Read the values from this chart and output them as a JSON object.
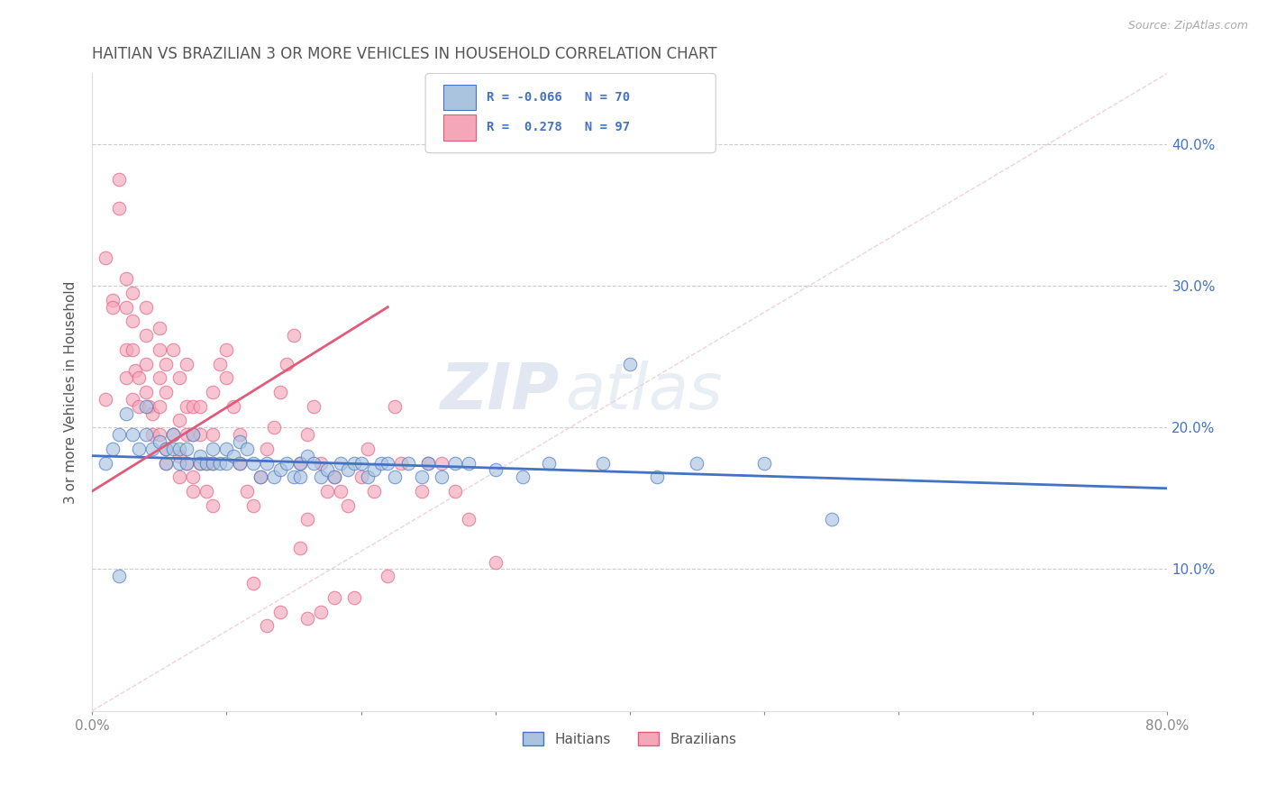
{
  "title": "HAITIAN VS BRAZILIAN 3 OR MORE VEHICLES IN HOUSEHOLD CORRELATION CHART",
  "source": "Source: ZipAtlas.com",
  "ylabel": "3 or more Vehicles in Household",
  "watermark_zip": "ZIP",
  "watermark_atlas": "atlas",
  "xmin": 0.0,
  "xmax": 0.8,
  "ymin": 0.0,
  "ymax": 0.45,
  "yticks": [
    0.1,
    0.2,
    0.3,
    0.4
  ],
  "ytick_labels": [
    "10.0%",
    "20.0%",
    "30.0%",
    "40.0%"
  ],
  "xticks": [
    0.0,
    0.1,
    0.2,
    0.3,
    0.4,
    0.5,
    0.6,
    0.7,
    0.8
  ],
  "xtick_labels": [
    "0.0%",
    "",
    "",
    "",
    "",
    "",
    "",
    "",
    "80.0%"
  ],
  "haitian_color": "#aac4e0",
  "brazilian_color": "#f4a7b9",
  "haitian_line_color": "#4472c4",
  "brazilian_line_color": "#e05a7a",
  "diagonal_color": "#cccccc",
  "background_color": "#ffffff",
  "title_color": "#555555",
  "haitian_trend": [
    0.0,
    0.8,
    0.18,
    0.157
  ],
  "brazilian_trend": [
    0.0,
    0.22,
    0.155,
    0.285
  ],
  "haitian_points": [
    [
      0.02,
      0.095
    ],
    [
      0.01,
      0.175
    ],
    [
      0.015,
      0.185
    ],
    [
      0.02,
      0.195
    ],
    [
      0.025,
      0.21
    ],
    [
      0.03,
      0.195
    ],
    [
      0.035,
      0.185
    ],
    [
      0.04,
      0.215
    ],
    [
      0.04,
      0.195
    ],
    [
      0.045,
      0.185
    ],
    [
      0.05,
      0.19
    ],
    [
      0.055,
      0.185
    ],
    [
      0.055,
      0.175
    ],
    [
      0.06,
      0.195
    ],
    [
      0.06,
      0.185
    ],
    [
      0.065,
      0.175
    ],
    [
      0.065,
      0.185
    ],
    [
      0.07,
      0.185
    ],
    [
      0.07,
      0.175
    ],
    [
      0.075,
      0.195
    ],
    [
      0.08,
      0.18
    ],
    [
      0.08,
      0.175
    ],
    [
      0.085,
      0.175
    ],
    [
      0.09,
      0.175
    ],
    [
      0.09,
      0.185
    ],
    [
      0.095,
      0.175
    ],
    [
      0.1,
      0.185
    ],
    [
      0.1,
      0.175
    ],
    [
      0.105,
      0.18
    ],
    [
      0.11,
      0.175
    ],
    [
      0.11,
      0.19
    ],
    [
      0.115,
      0.185
    ],
    [
      0.12,
      0.175
    ],
    [
      0.125,
      0.165
    ],
    [
      0.13,
      0.175
    ],
    [
      0.135,
      0.165
    ],
    [
      0.14,
      0.17
    ],
    [
      0.145,
      0.175
    ],
    [
      0.15,
      0.165
    ],
    [
      0.155,
      0.165
    ],
    [
      0.155,
      0.175
    ],
    [
      0.16,
      0.18
    ],
    [
      0.165,
      0.175
    ],
    [
      0.17,
      0.165
    ],
    [
      0.175,
      0.17
    ],
    [
      0.18,
      0.165
    ],
    [
      0.185,
      0.175
    ],
    [
      0.19,
      0.17
    ],
    [
      0.195,
      0.175
    ],
    [
      0.2,
      0.175
    ],
    [
      0.205,
      0.165
    ],
    [
      0.21,
      0.17
    ],
    [
      0.215,
      0.175
    ],
    [
      0.22,
      0.175
    ],
    [
      0.225,
      0.165
    ],
    [
      0.235,
      0.175
    ],
    [
      0.245,
      0.165
    ],
    [
      0.25,
      0.175
    ],
    [
      0.26,
      0.165
    ],
    [
      0.27,
      0.175
    ],
    [
      0.28,
      0.175
    ],
    [
      0.3,
      0.17
    ],
    [
      0.32,
      0.165
    ],
    [
      0.34,
      0.175
    ],
    [
      0.38,
      0.175
    ],
    [
      0.4,
      0.245
    ],
    [
      0.42,
      0.165
    ],
    [
      0.45,
      0.175
    ],
    [
      0.5,
      0.175
    ],
    [
      0.55,
      0.135
    ]
  ],
  "brazilian_points": [
    [
      0.01,
      0.22
    ],
    [
      0.01,
      0.32
    ],
    [
      0.015,
      0.29
    ],
    [
      0.015,
      0.285
    ],
    [
      0.02,
      0.375
    ],
    [
      0.02,
      0.355
    ],
    [
      0.025,
      0.305
    ],
    [
      0.025,
      0.285
    ],
    [
      0.025,
      0.255
    ],
    [
      0.025,
      0.235
    ],
    [
      0.03,
      0.22
    ],
    [
      0.03,
      0.295
    ],
    [
      0.03,
      0.275
    ],
    [
      0.03,
      0.255
    ],
    [
      0.032,
      0.24
    ],
    [
      0.035,
      0.235
    ],
    [
      0.035,
      0.215
    ],
    [
      0.04,
      0.285
    ],
    [
      0.04,
      0.265
    ],
    [
      0.04,
      0.245
    ],
    [
      0.04,
      0.225
    ],
    [
      0.042,
      0.215
    ],
    [
      0.045,
      0.195
    ],
    [
      0.045,
      0.21
    ],
    [
      0.05,
      0.27
    ],
    [
      0.05,
      0.255
    ],
    [
      0.05,
      0.235
    ],
    [
      0.05,
      0.215
    ],
    [
      0.05,
      0.195
    ],
    [
      0.055,
      0.185
    ],
    [
      0.055,
      0.175
    ],
    [
      0.055,
      0.225
    ],
    [
      0.055,
      0.245
    ],
    [
      0.06,
      0.255
    ],
    [
      0.06,
      0.195
    ],
    [
      0.065,
      0.18
    ],
    [
      0.065,
      0.165
    ],
    [
      0.065,
      0.205
    ],
    [
      0.065,
      0.235
    ],
    [
      0.07,
      0.215
    ],
    [
      0.07,
      0.245
    ],
    [
      0.07,
      0.195
    ],
    [
      0.07,
      0.175
    ],
    [
      0.075,
      0.165
    ],
    [
      0.075,
      0.155
    ],
    [
      0.075,
      0.195
    ],
    [
      0.075,
      0.215
    ],
    [
      0.08,
      0.175
    ],
    [
      0.08,
      0.195
    ],
    [
      0.08,
      0.215
    ],
    [
      0.085,
      0.175
    ],
    [
      0.085,
      0.155
    ],
    [
      0.09,
      0.145
    ],
    [
      0.09,
      0.175
    ],
    [
      0.09,
      0.195
    ],
    [
      0.09,
      0.225
    ],
    [
      0.095,
      0.245
    ],
    [
      0.1,
      0.255
    ],
    [
      0.1,
      0.235
    ],
    [
      0.105,
      0.215
    ],
    [
      0.11,
      0.195
    ],
    [
      0.11,
      0.175
    ],
    [
      0.115,
      0.155
    ],
    [
      0.12,
      0.145
    ],
    [
      0.125,
      0.165
    ],
    [
      0.13,
      0.185
    ],
    [
      0.135,
      0.2
    ],
    [
      0.14,
      0.225
    ],
    [
      0.145,
      0.245
    ],
    [
      0.15,
      0.265
    ],
    [
      0.155,
      0.175
    ],
    [
      0.155,
      0.115
    ],
    [
      0.16,
      0.135
    ],
    [
      0.16,
      0.195
    ],
    [
      0.165,
      0.215
    ],
    [
      0.17,
      0.175
    ],
    [
      0.175,
      0.155
    ],
    [
      0.18,
      0.165
    ],
    [
      0.185,
      0.155
    ],
    [
      0.19,
      0.145
    ],
    [
      0.2,
      0.165
    ],
    [
      0.205,
      0.185
    ],
    [
      0.21,
      0.155
    ],
    [
      0.22,
      0.095
    ],
    [
      0.225,
      0.215
    ],
    [
      0.23,
      0.175
    ],
    [
      0.245,
      0.155
    ],
    [
      0.25,
      0.175
    ],
    [
      0.26,
      0.175
    ],
    [
      0.27,
      0.155
    ],
    [
      0.28,
      0.135
    ],
    [
      0.3,
      0.105
    ],
    [
      0.18,
      0.08
    ],
    [
      0.195,
      0.08
    ],
    [
      0.16,
      0.065
    ],
    [
      0.17,
      0.07
    ],
    [
      0.12,
      0.09
    ],
    [
      0.13,
      0.06
    ],
    [
      0.14,
      0.07
    ]
  ]
}
